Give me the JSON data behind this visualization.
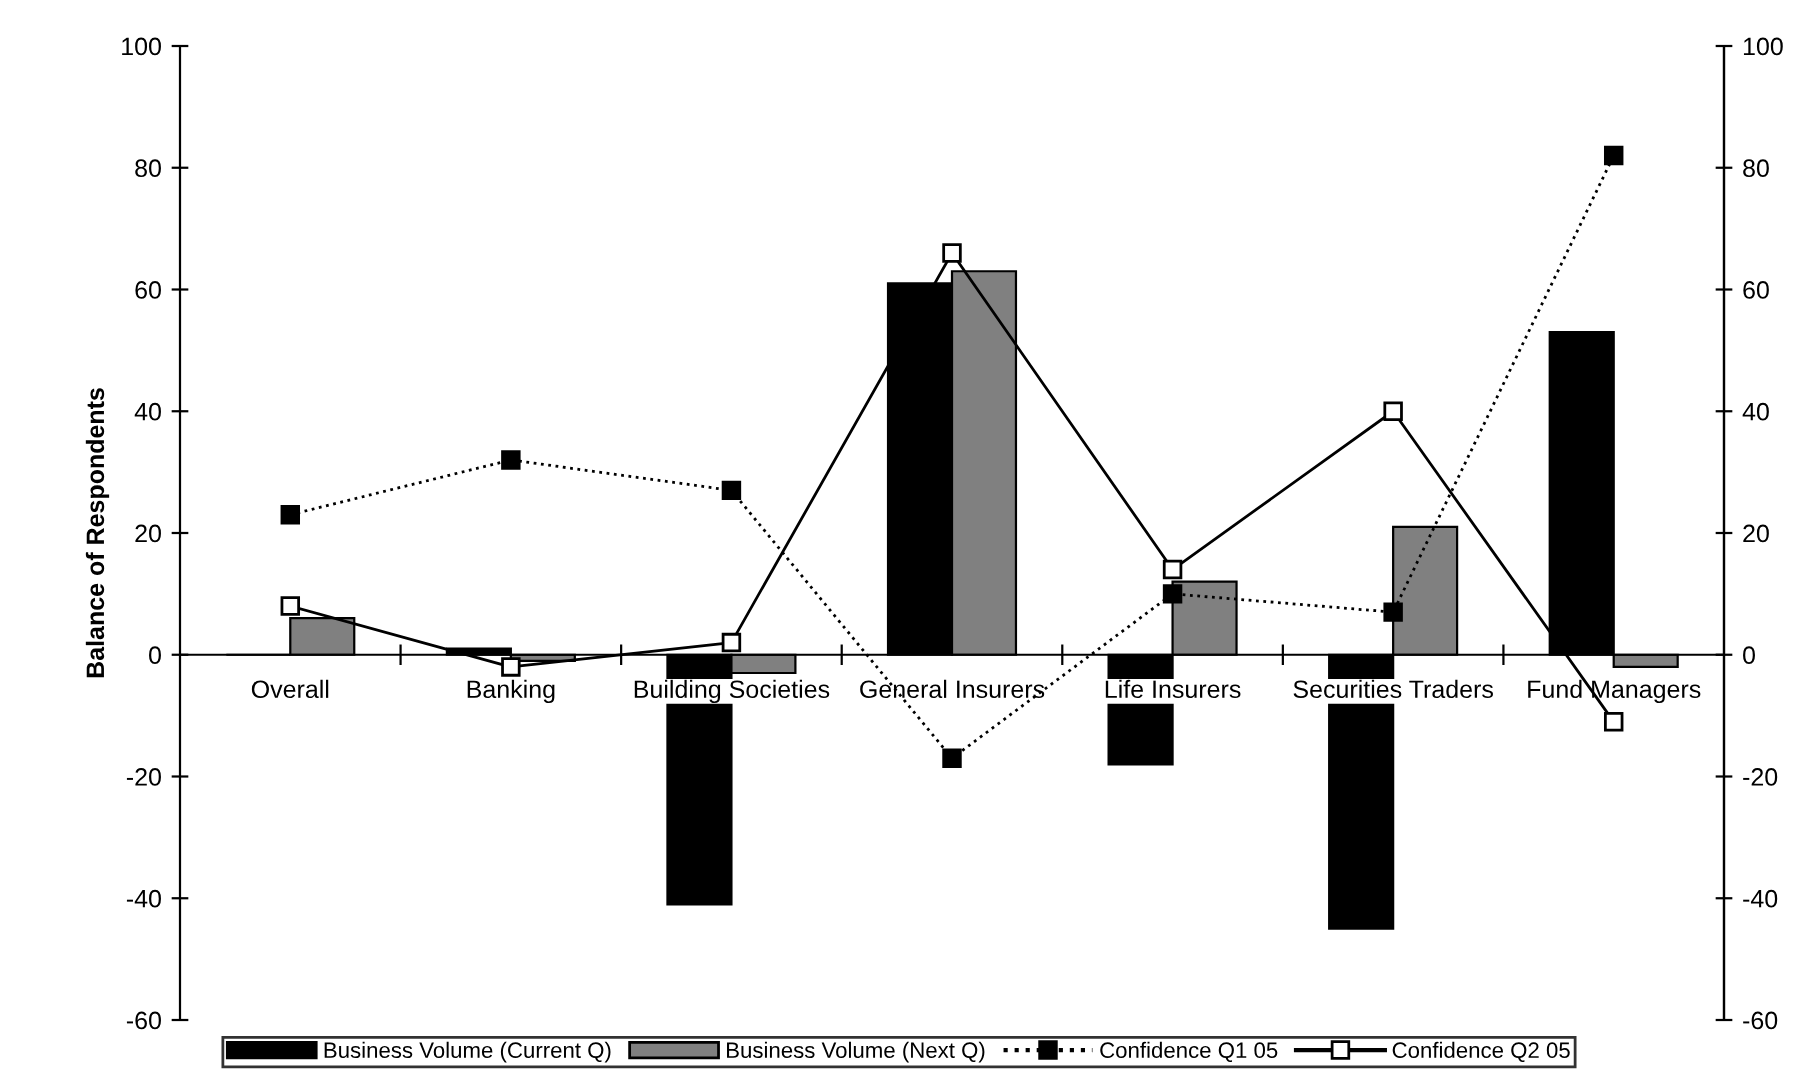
{
  "chart_data": {
    "type": "bar",
    "ylabel": "Balance of Respondents",
    "categories": [
      "Overall",
      "Banking",
      "Building Societies",
      "General Insurers",
      "Life Insurers",
      "Securities Traders",
      "Fund Managers"
    ],
    "series": [
      {
        "name": "Business Volume (Current Q)",
        "color": "#000000",
        "values": [
          0,
          1,
          -41,
          61,
          -18,
          -45,
          53
        ]
      },
      {
        "name": "Business Volume (Next Q)",
        "color": "#808080",
        "values": [
          6,
          -1,
          -3,
          63,
          12,
          21,
          -2
        ]
      },
      {
        "name": "Confidence Q1 05",
        "type": "line",
        "color": "#000000",
        "marker": "square",
        "line_style": "dotted",
        "values": [
          23,
          32,
          27,
          -17,
          10,
          7,
          82
        ]
      },
      {
        "name": "Confidence Q2 05",
        "type": "line",
        "color": "#000000",
        "marker": "square",
        "line_style": "solid",
        "values": [
          8,
          -2,
          2,
          66,
          14,
          40,
          -11
        ]
      }
    ],
    "ylim": [
      -60,
      100
    ],
    "yticks": [
      -60,
      -40,
      -20,
      0,
      20,
      40,
      60,
      80,
      100
    ],
    "y2lim": [
      -60,
      100
    ],
    "y2ticks": [
      -60,
      -40,
      -20,
      0,
      20,
      40,
      60,
      80,
      100
    ],
    "grid": false,
    "legend": "bottom"
  }
}
